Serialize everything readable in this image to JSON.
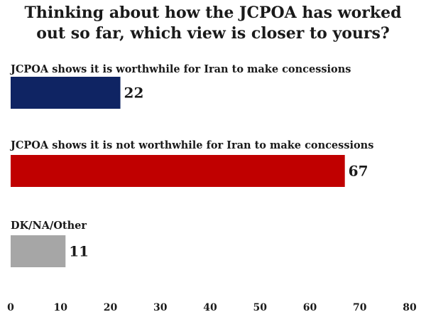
{
  "chart_data": {
    "type": "bar",
    "orientation": "horizontal",
    "title_lines": [
      "Thinking about how the JCPOA has worked",
      "out so far, which view is closer to yours?"
    ],
    "categories": [
      "JCPOA shows it is worthwhile for Iran to make concessions",
      "JCPOA shows it is not worthwhile for Iran to make concessions",
      "DK/NA/Other"
    ],
    "values": [
      22,
      67,
      11
    ],
    "colors": [
      "#0f2463",
      "#c00000",
      "#a6a6a6"
    ],
    "xlim": [
      0,
      80
    ],
    "xticks": [
      0,
      10,
      20,
      30,
      40,
      50,
      60,
      70,
      80
    ],
    "grid": false,
    "legend": "none"
  }
}
